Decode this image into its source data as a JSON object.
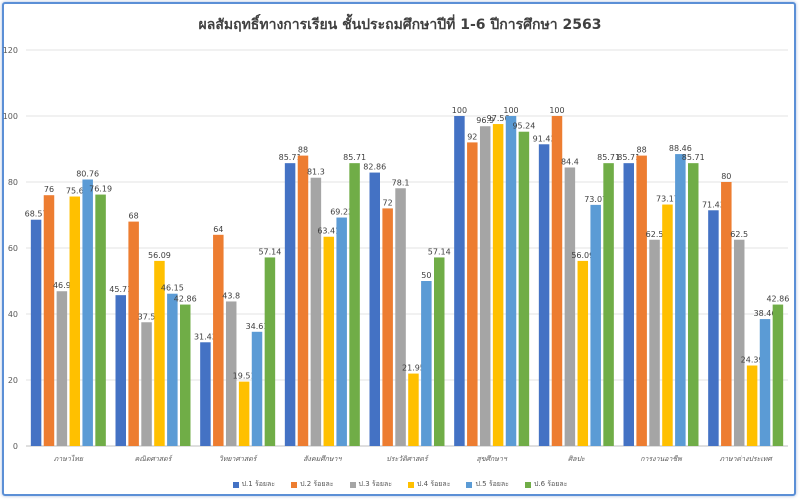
{
  "chart_data": {
    "type": "bar",
    "title": "ผลสัมฤทธิ์ทางการเรียน ชั้นประถมศึกษาปีที่ 1-6 ปีการศึกษา 2563",
    "categories": [
      "ภาษาไทย",
      "คณิตศาสตร์",
      "วิทยาศาสตร์",
      "สังคมศึกษาฯ",
      "ประวัติศาสตร์",
      "สุขศึกษาฯ",
      "ศิลปะ",
      "การงานอาชีพ",
      "ภาษาต่างประเทศ"
    ],
    "series": [
      {
        "name": "ป.1 ร้อยละ",
        "color": "#4472c4",
        "values": [
          68.57,
          45.71,
          31.43,
          85.71,
          82.86,
          100,
          91.43,
          85.71,
          71.43
        ]
      },
      {
        "name": "ป.2 ร้อยละ",
        "color": "#ed7d31",
        "values": [
          76,
          68,
          64,
          88,
          72,
          92,
          100,
          88,
          80
        ]
      },
      {
        "name": "ป.3 ร้อยละ",
        "color": "#a5a5a5",
        "values": [
          46.9,
          37.5,
          43.8,
          81.3,
          78.1,
          96.9,
          84.4,
          62.5,
          62.5
        ]
      },
      {
        "name": "ป.4 ร้อยละ",
        "color": "#ffc000",
        "values": [
          75.6,
          56.09,
          19.51,
          63.41,
          21.95,
          97.56,
          56.09,
          73.17,
          24.39
        ]
      },
      {
        "name": "ป.5 ร้อยละ",
        "color": "#5b9bd5",
        "values": [
          80.76,
          46.15,
          34.61,
          69.23,
          50,
          100,
          73.07,
          88.46,
          38.46
        ]
      },
      {
        "name": "ป.6 ร้อยละ",
        "color": "#70ad47",
        "values": [
          76.19,
          42.86,
          57.14,
          85.71,
          57.14,
          95.24,
          85.71,
          85.71,
          42.86
        ]
      }
    ],
    "ylim": [
      0,
      120
    ],
    "yticks": [
      0,
      20,
      40,
      60,
      80,
      100,
      120
    ],
    "grid": true,
    "legend_position": "bottom"
  }
}
